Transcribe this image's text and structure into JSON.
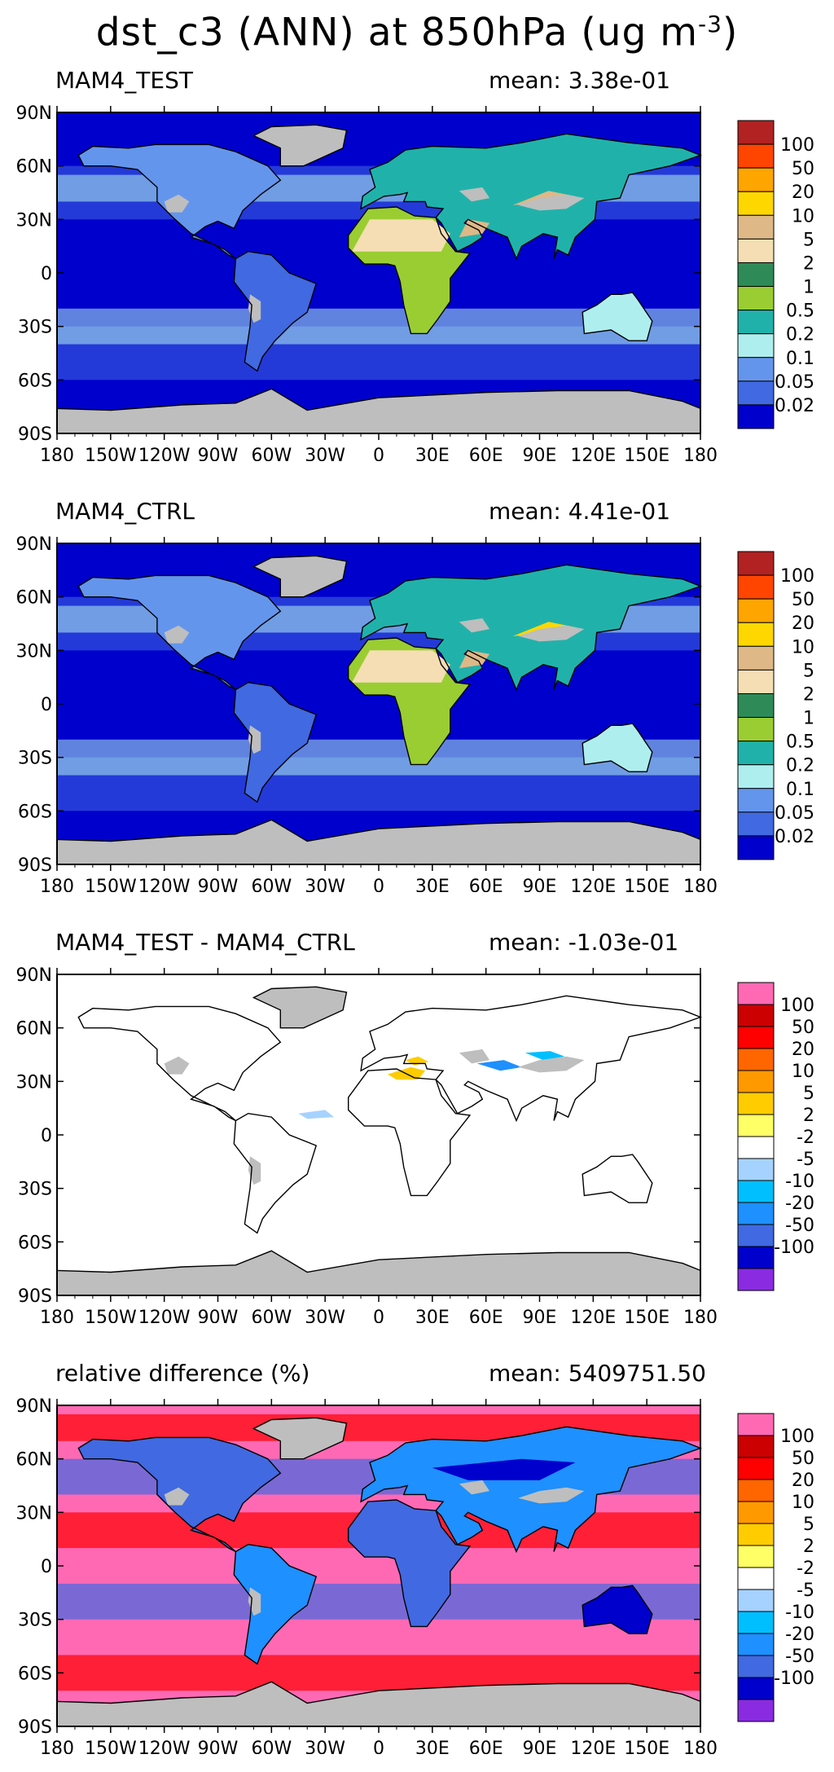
{
  "figure": {
    "title": "dst_c3 (ANN) at 850hPa (ug m",
    "title_unit_exponent": "-3",
    "title_close": ")"
  },
  "chart_data": [
    {
      "type": "heatmap",
      "panel": "MAM4_TEST",
      "left_label": "MAM4_TEST",
      "right_label": "mean: 3.38e-01",
      "mean": 0.338,
      "x_ticks": [
        "180",
        "150W",
        "120W",
        "90W",
        "60W",
        "30W",
        "0",
        "30E",
        "60E",
        "90E",
        "120E",
        "150E",
        "180"
      ],
      "y_ticks": [
        "90N",
        "60N",
        "30N",
        "0",
        "30S",
        "60S",
        "90S"
      ],
      "xlim": [
        -180,
        180
      ],
      "ylim": [
        -90,
        90
      ],
      "colorbar_labels": [
        "100",
        "50",
        "20",
        "10",
        "5",
        "2",
        "1",
        "0.5",
        "0.2",
        "0.1",
        "0.05",
        "0.02"
      ],
      "colorbar_colors": [
        "#b22222",
        "#ff4500",
        "#ffa500",
        "#ffd700",
        "#deb887",
        "#f5deb3",
        "#2e8b57",
        "#9acd32",
        "#20b2aa",
        "#afeeee",
        "#6495ed",
        "#4169e1",
        "#0000cd"
      ],
      "missing_color": "#bebebe"
    },
    {
      "type": "heatmap",
      "panel": "MAM4_CTRL",
      "left_label": "MAM4_CTRL",
      "right_label": "mean: 4.41e-01",
      "mean": 0.441,
      "x_ticks": [
        "180",
        "150W",
        "120W",
        "90W",
        "60W",
        "30W",
        "0",
        "30E",
        "60E",
        "90E",
        "120E",
        "150E",
        "180"
      ],
      "y_ticks": [
        "90N",
        "60N",
        "30N",
        "0",
        "30S",
        "60S",
        "90S"
      ],
      "xlim": [
        -180,
        180
      ],
      "ylim": [
        -90,
        90
      ],
      "colorbar_labels": [
        "100",
        "50",
        "20",
        "10",
        "5",
        "2",
        "1",
        "0.5",
        "0.2",
        "0.1",
        "0.05",
        "0.02"
      ],
      "colorbar_colors": [
        "#b22222",
        "#ff4500",
        "#ffa500",
        "#ffd700",
        "#deb887",
        "#f5deb3",
        "#2e8b57",
        "#9acd32",
        "#20b2aa",
        "#afeeee",
        "#6495ed",
        "#4169e1",
        "#0000cd"
      ],
      "missing_color": "#bebebe"
    },
    {
      "type": "heatmap",
      "panel": "difference",
      "left_label": "MAM4_TEST - MAM4_CTRL",
      "right_label": "mean: -1.03e-01",
      "mean": -0.103,
      "x_ticks": [
        "180",
        "150W",
        "120W",
        "90W",
        "60W",
        "30W",
        "0",
        "30E",
        "60E",
        "90E",
        "120E",
        "150E",
        "180"
      ],
      "y_ticks": [
        "90N",
        "60N",
        "30N",
        "0",
        "30S",
        "60S",
        "90S"
      ],
      "xlim": [
        -180,
        180
      ],
      "ylim": [
        -90,
        90
      ],
      "colorbar_labels": [
        "100",
        "50",
        "20",
        "10",
        "5",
        "2",
        "-2",
        "-5",
        "-10",
        "-20",
        "-50",
        "-100"
      ],
      "colorbar_colors": [
        "#ff69b4",
        "#cc0000",
        "#ff0000",
        "#ff6600",
        "#ff9900",
        "#ffcc00",
        "#ffff66",
        "#ffffff",
        "#a6d2ff",
        "#00bfff",
        "#1e90ff",
        "#4169e1",
        "#0000cd",
        "#8a2be2"
      ],
      "missing_color": "#bebebe"
    },
    {
      "type": "heatmap",
      "panel": "relative difference",
      "left_label": "relative difference (%)",
      "right_label": "mean: 5409751.50",
      "mean": 5409751.5,
      "x_ticks": [
        "180",
        "150W",
        "120W",
        "90W",
        "60W",
        "30W",
        "0",
        "30E",
        "60E",
        "90E",
        "120E",
        "150E",
        "180"
      ],
      "y_ticks": [
        "90N",
        "60N",
        "30N",
        "0",
        "30S",
        "60S",
        "90S"
      ],
      "xlim": [
        -180,
        180
      ],
      "ylim": [
        -90,
        90
      ],
      "colorbar_labels": [
        "100",
        "50",
        "20",
        "10",
        "5",
        "2",
        "-2",
        "-5",
        "-10",
        "-20",
        "-50",
        "-100"
      ],
      "colorbar_colors": [
        "#ff69b4",
        "#cc0000",
        "#ff0000",
        "#ff6600",
        "#ff9900",
        "#ffcc00",
        "#ffff66",
        "#ffffff",
        "#a6d2ff",
        "#00bfff",
        "#1e90ff",
        "#4169e1",
        "#0000cd",
        "#8a2be2"
      ],
      "missing_color": "#bebebe"
    }
  ]
}
